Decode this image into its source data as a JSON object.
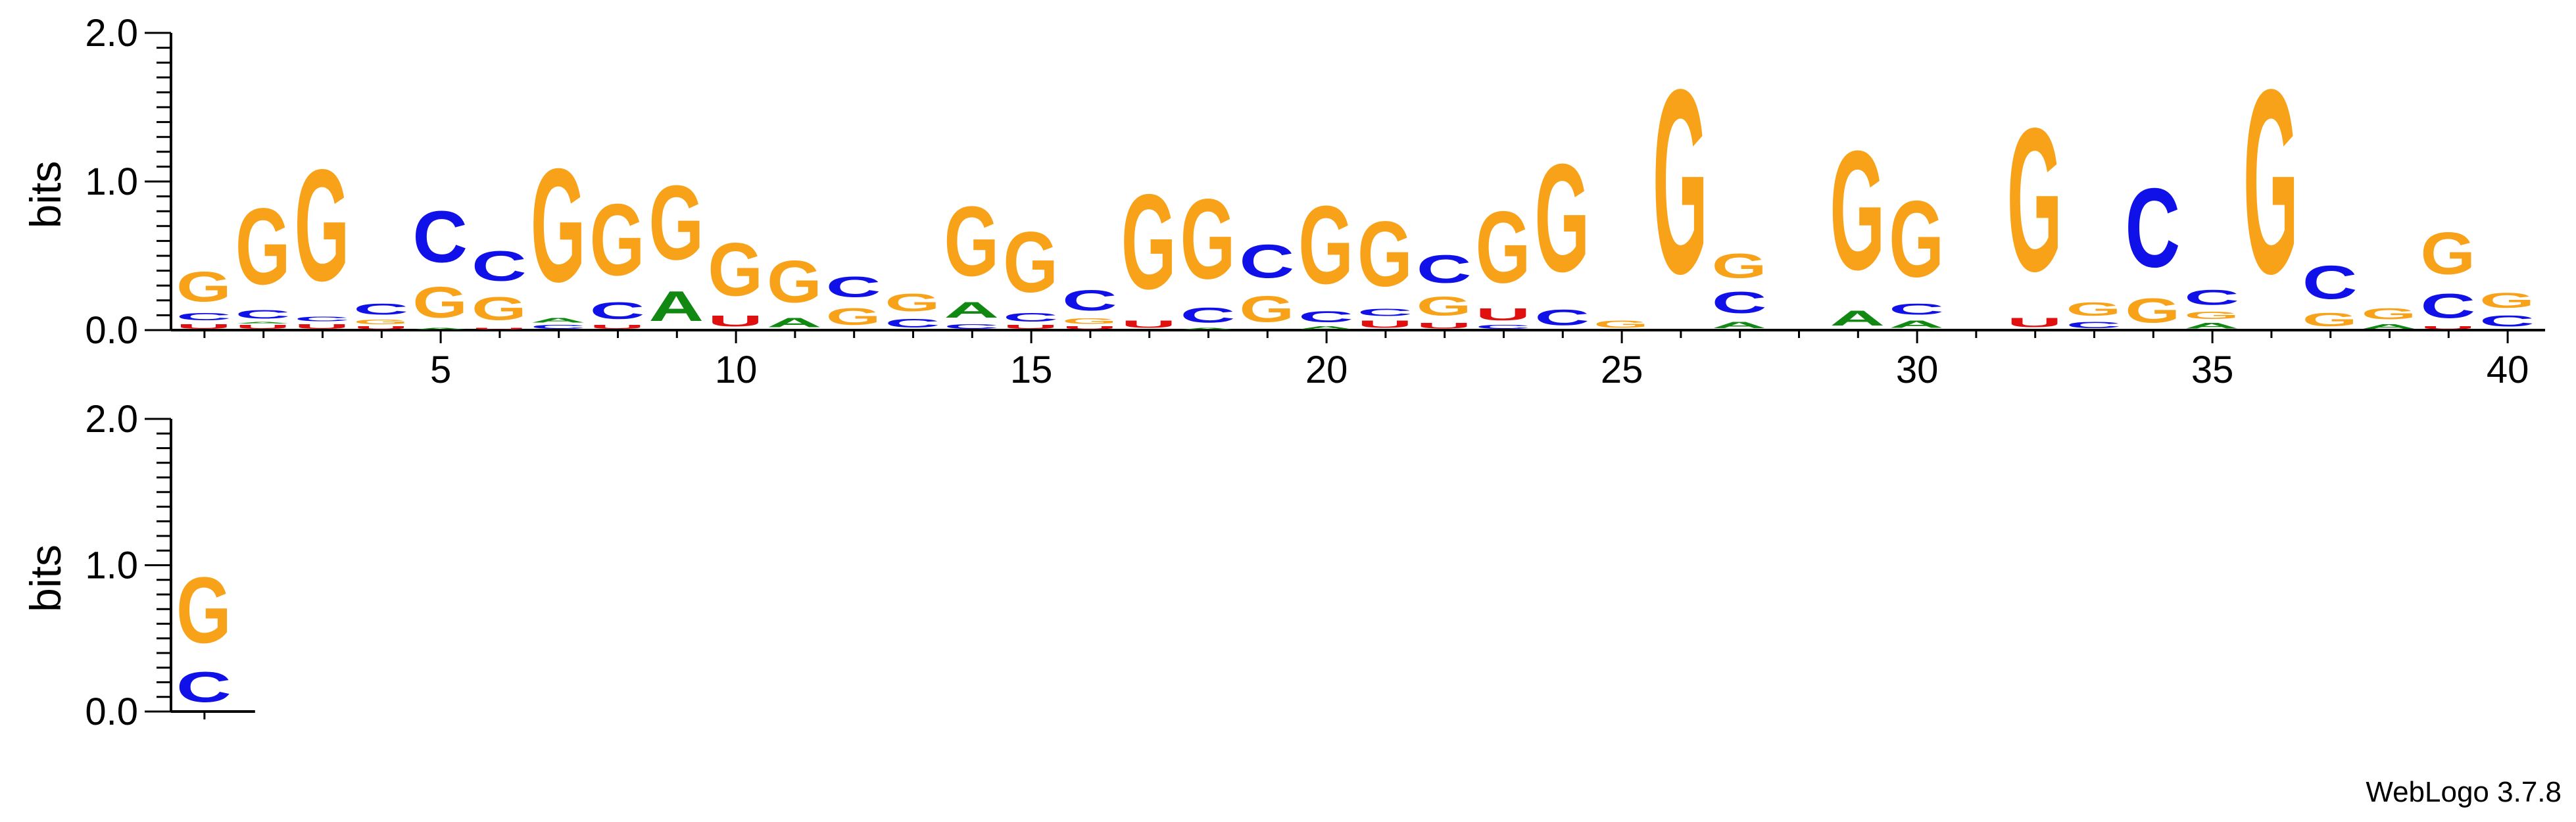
{
  "chart_data": {
    "type": "sequence-logo",
    "ylabel": "bits",
    "ylim": [
      0,
      2
    ],
    "yticks": [
      "0.0",
      "1.0",
      "2.0"
    ],
    "xtick_labels": [
      "5",
      "10",
      "15",
      "20",
      "25",
      "30",
      "35",
      "40"
    ],
    "colors": {
      "G": "#f8a21a",
      "C": "#1010e8",
      "A": "#118811",
      "U": "#e01010"
    },
    "rows": [
      {
        "first_position": 1,
        "columns": [
          [
            [
              "U",
              0.05
            ],
            [
              "C",
              0.08
            ],
            [
              "G",
              0.32
            ]
          ],
          [
            [
              "U",
              0.04
            ],
            [
              "A",
              0.02
            ],
            [
              "C",
              0.09
            ],
            [
              "G",
              0.82
            ]
          ],
          [
            [
              "U",
              0.05
            ],
            [
              "C",
              0.05
            ],
            [
              "G",
              1.2
            ]
          ],
          [
            [
              "U",
              0.03
            ],
            [
              "G",
              0.05
            ],
            [
              "C",
              0.12
            ]
          ],
          [
            [
              "A",
              0.02
            ],
            [
              "G",
              0.33
            ],
            [
              "C",
              0.55
            ]
          ],
          [
            [
              "U",
              0.02
            ],
            [
              "G",
              0.25
            ],
            [
              "C",
              0.32
            ]
          ],
          [
            [
              "C",
              0.04
            ],
            [
              "A",
              0.05
            ],
            [
              "G",
              1.22
            ]
          ],
          [
            [
              "U",
              0.04
            ],
            [
              "C",
              0.18
            ],
            [
              "G",
              0.77
            ]
          ],
          [
            [
              "A",
              0.32
            ],
            [
              "G",
              0.8
            ]
          ],
          [
            [
              "U",
              0.12
            ],
            [
              "G",
              0.57
            ]
          ],
          [
            [
              "A",
              0.1
            ],
            [
              "G",
              0.45
            ]
          ],
          [
            [
              "G",
              0.18
            ],
            [
              "C",
              0.22
            ]
          ],
          [
            [
              "C",
              0.09
            ],
            [
              "G",
              0.19
            ]
          ],
          [
            [
              "C",
              0.05
            ],
            [
              "A",
              0.17
            ],
            [
              "G",
              0.75
            ]
          ],
          [
            [
              "U",
              0.04
            ],
            [
              "C",
              0.09
            ],
            [
              "G",
              0.65
            ]
          ],
          [
            [
              "U",
              0.03
            ],
            [
              "G",
              0.06
            ],
            [
              "C",
              0.22
            ]
          ],
          [
            [
              "U",
              0.08
            ],
            [
              "G",
              1.02
            ]
          ],
          [
            [
              "A",
              0.02
            ],
            [
              "C",
              0.16
            ],
            [
              "G",
              0.86
            ]
          ],
          [
            [
              "G",
              0.28
            ],
            [
              "C",
              0.36
            ]
          ],
          [
            [
              "A",
              0.03
            ],
            [
              "C",
              0.12
            ],
            [
              "G",
              0.84
            ]
          ],
          [
            [
              "U",
              0.08
            ],
            [
              "C",
              0.08
            ],
            [
              "G",
              0.7
            ]
          ],
          [
            [
              "U",
              0.06
            ],
            [
              "G",
              0.2
            ],
            [
              "C",
              0.3
            ]
          ],
          [
            [
              "C",
              0.04
            ],
            [
              "U",
              0.13
            ],
            [
              "G",
              0.77
            ]
          ],
          [
            [
              "C",
              0.17
            ],
            [
              "G",
              1.16
            ]
          ],
          [
            [
              "G",
              0.08
            ]
          ],
          [
            [
              "G",
              1.98
            ]
          ],
          [
            [
              "A",
              0.07
            ],
            [
              "C",
              0.23
            ],
            [
              "G",
              0.26
            ]
          ],
          [],
          [
            [
              "A",
              0.16
            ],
            [
              "G",
              1.28
            ]
          ],
          [
            [
              "A",
              0.08
            ],
            [
              "C",
              0.12
            ],
            [
              "G",
              0.82
            ]
          ],
          [],
          [
            [
              "U",
              0.1
            ],
            [
              "G",
              1.54
            ]
          ],
          [
            [
              "C",
              0.07
            ],
            [
              "G",
              0.14
            ]
          ],
          [
            [
              "G",
              0.26
            ],
            [
              "C",
              0.85
            ]
          ],
          [
            [
              "A",
              0.06
            ],
            [
              "G",
              0.08
            ],
            [
              "C",
              0.16
            ]
          ],
          [
            [
              "G",
              1.98
            ]
          ],
          [
            [
              "G",
              0.14
            ],
            [
              "C",
              0.36
            ]
          ],
          [
            [
              "A",
              0.05
            ],
            [
              "G",
              0.12
            ]
          ],
          [
            [
              "U",
              0.03
            ],
            [
              "C",
              0.26
            ],
            [
              "G",
              0.45
            ]
          ],
          [
            [
              "C",
              0.12
            ],
            [
              "G",
              0.16
            ]
          ]
        ]
      },
      {
        "first_position": 41,
        "columns": [
          [
            [
              "C",
              0.33
            ],
            [
              "G",
              0.72
            ]
          ]
        ]
      }
    ]
  },
  "footer": {
    "credit": "WebLogo 3.7.8"
  }
}
